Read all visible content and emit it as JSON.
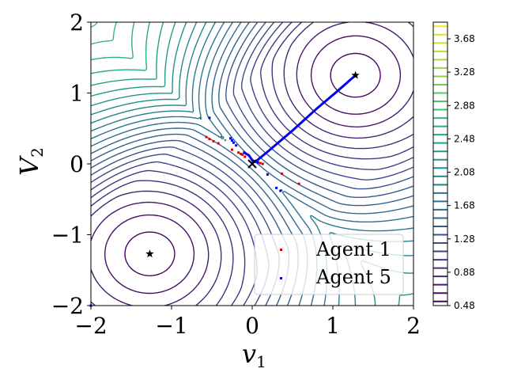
{
  "chart_data": {
    "type": "contour",
    "title": "",
    "xlabel": "v",
    "xlabel_sub": "1",
    "ylabel": "V",
    "ylabel_sub": "2",
    "xlim": [
      -2,
      2
    ],
    "ylim": [
      -2,
      2
    ],
    "x_ticks": [
      -2,
      -1,
      0,
      1,
      2
    ],
    "y_ticks": [
      -2,
      -1,
      0,
      1,
      2
    ],
    "x_tick_labels": [
      "−2",
      "−1",
      "0",
      "1",
      "2"
    ],
    "y_tick_labels": [
      "−2",
      "−1",
      "0",
      "1",
      "2"
    ],
    "colorbar": {
      "min": 0.48,
      "max": 3.88,
      "tick_values": [
        0.48,
        0.88,
        1.28,
        1.68,
        2.08,
        2.48,
        2.88,
        3.28,
        3.68
      ],
      "tick_labels": [
        "0.48",
        "0.88",
        "1.28",
        "1.68",
        "2.08",
        "2.48",
        "2.88",
        "3.28",
        "3.68"
      ],
      "colormap": "viridis"
    },
    "stars": [
      {
        "x": 1.28,
        "y": 1.25
      },
      {
        "x": -1.27,
        "y": -1.27
      }
    ],
    "cross": {
      "x": 0.0,
      "y": 0.0
    },
    "series": [
      {
        "name": "Agent 1",
        "color": "#e00000",
        "points": [
          [
            -0.57,
            0.38
          ],
          [
            -0.53,
            0.35
          ],
          [
            -0.48,
            0.32
          ],
          [
            -0.42,
            0.29
          ],
          [
            -0.25,
            0.2
          ],
          [
            -0.17,
            0.16
          ],
          [
            -0.14,
            0.14
          ],
          [
            -0.12,
            0.13
          ],
          [
            -0.09,
            0.1
          ],
          [
            0.07,
            0.03
          ],
          [
            0.1,
            0.01
          ],
          [
            0.13,
            0.0
          ],
          [
            0.37,
            -0.14
          ],
          [
            0.58,
            -0.28
          ]
        ]
      },
      {
        "name": "Agent 5",
        "color": "#0000f0",
        "points": [
          [
            -0.53,
            0.65
          ],
          [
            -0.27,
            0.36
          ],
          [
            -0.25,
            0.33
          ],
          [
            -0.23,
            0.3
          ],
          [
            -0.2,
            0.26
          ],
          [
            -0.1,
            0.16
          ],
          [
            0.01,
            0.02
          ],
          [
            0.03,
            0.03
          ],
          [
            0.07,
            0.02
          ],
          [
            0.19,
            -0.15
          ],
          [
            0.3,
            -0.34
          ],
          [
            0.35,
            -0.38
          ],
          [
            -2.0,
            -2.0
          ]
        ]
      }
    ],
    "trajectory_line": {
      "color": "#0000f0",
      "points": [
        [
          -0.1,
          0.16
        ],
        [
          -0.04,
          0.12
        ],
        [
          0.0,
          0.05
        ],
        [
          0.04,
          0.03
        ],
        [
          0.2,
          0.18
        ],
        [
          0.5,
          0.47
        ],
        [
          0.8,
          0.78
        ],
        [
          1.05,
          1.02
        ],
        [
          1.28,
          1.25
        ]
      ]
    },
    "legend_position": "lower-right",
    "grid": false
  }
}
